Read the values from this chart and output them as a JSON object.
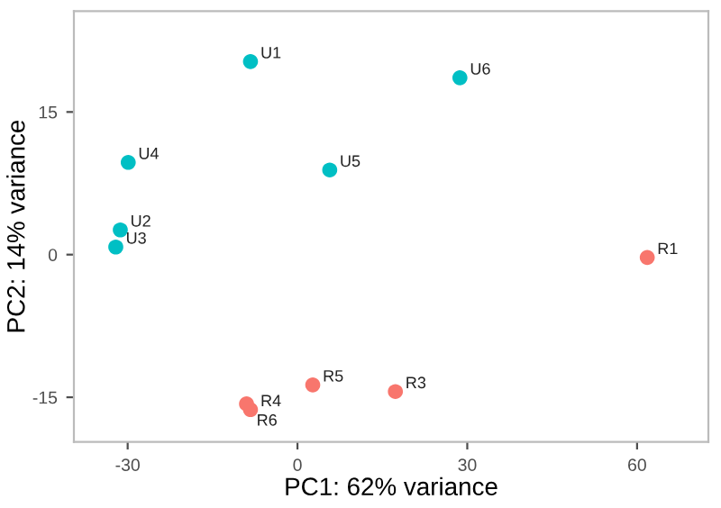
{
  "chart_data": {
    "type": "scatter",
    "xlabel": "PC1: 62% variance",
    "ylabel": "PC2: 14% variance",
    "series": [
      {
        "color": "#00bfc4",
        "x": [
          -8.3,
          -31.3,
          -32.1,
          -29.9,
          5.7,
          28.7
        ],
        "values": [
          20.3,
          2.6,
          0.8,
          9.7,
          8.9,
          18.6
        ]
      },
      {
        "color": "#f8766d",
        "x": [
          61.8,
          17.3,
          -8.3,
          2.7,
          -9.0
        ],
        "values": [
          -0.3,
          -14.4,
          -16.3,
          -13.7,
          -15.7
        ]
      }
    ],
    "annotations": [
      {
        "text": "U1",
        "x": -8.3,
        "y": 20.3
      },
      {
        "text": "U2",
        "x": -31.3,
        "y": 2.6
      },
      {
        "text": "U3",
        "x": -32.1,
        "y": 0.8
      },
      {
        "text": "U4",
        "x": -29.9,
        "y": 9.7
      },
      {
        "text": "U5",
        "x": 5.7,
        "y": 8.9
      },
      {
        "text": "U6",
        "x": 28.7,
        "y": 18.6
      },
      {
        "text": "R1",
        "x": 61.8,
        "y": -0.3
      },
      {
        "text": "R3",
        "x": 17.3,
        "y": -14.4
      },
      {
        "text": "R4",
        "x": -8.3,
        "y": -16.3
      },
      {
        "text": "R5",
        "x": 2.7,
        "y": -13.7
      },
      {
        "text": "R6",
        "x": -9.0,
        "y": -15.7
      }
    ],
    "xlim": [
      -39.5,
      72.6
    ],
    "ylim": [
      -19.7,
      25.6
    ],
    "xticks": [
      -30,
      0,
      30,
      60
    ],
    "yticks": [
      -15,
      0,
      15
    ],
    "grid": false,
    "legend": false,
    "marker": "circle"
  }
}
